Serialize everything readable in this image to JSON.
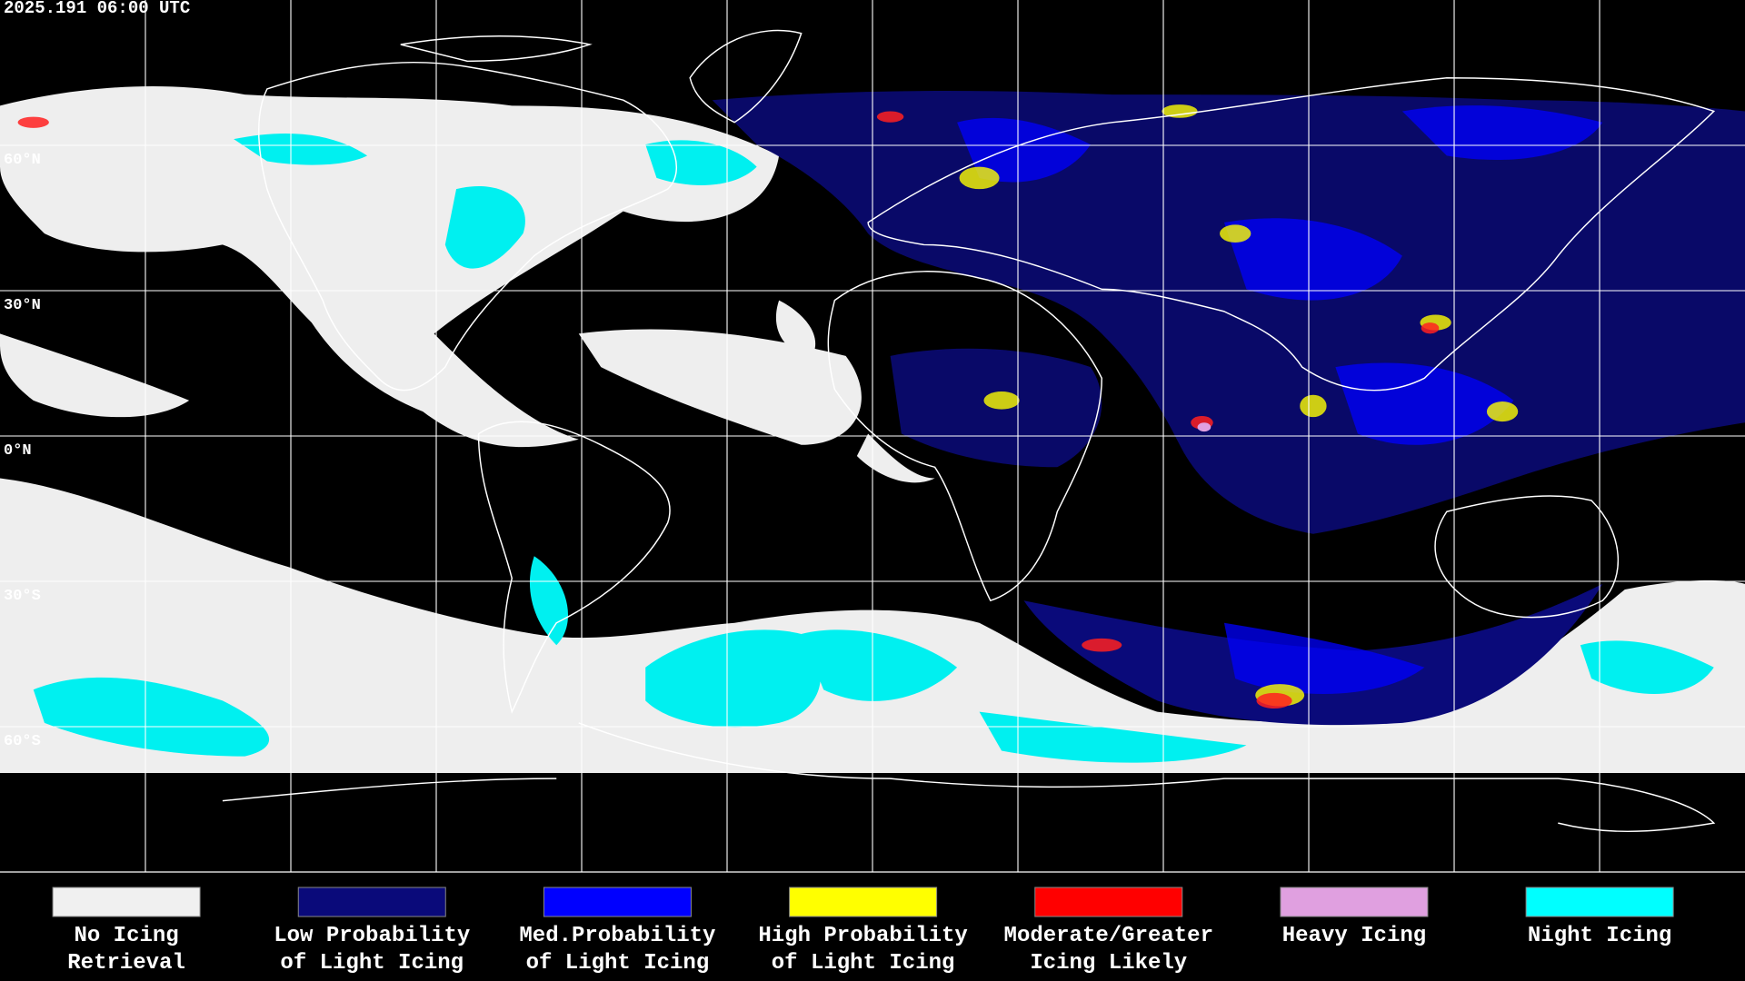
{
  "header": {
    "timestamp": "2025.191 06:00 UTC"
  },
  "map": {
    "latitude_labels": [
      "60°N",
      "30°N",
      "0°N",
      "30°S",
      "60°S"
    ]
  },
  "legend": {
    "items": [
      {
        "label_lines": [
          "No Icing",
          "Retrieval"
        ],
        "color": "#f0f0f0"
      },
      {
        "label_lines": [
          "Low Probability",
          "of Light Icing"
        ],
        "color": "#0a0a7a"
      },
      {
        "label_lines": [
          "Med.Probability",
          "of Light Icing"
        ],
        "color": "#0000ff"
      },
      {
        "label_lines": [
          "High Probability",
          "of Light Icing"
        ],
        "color": "#ffff00"
      },
      {
        "label_lines": [
          "Moderate/Greater",
          "Icing Likely"
        ],
        "color": "#ff0000"
      },
      {
        "label_lines": [
          "Heavy Icing"
        ],
        "color": "#e0a0e0"
      },
      {
        "label_lines": [
          "Night Icing"
        ],
        "color": "#00ffff"
      }
    ]
  }
}
